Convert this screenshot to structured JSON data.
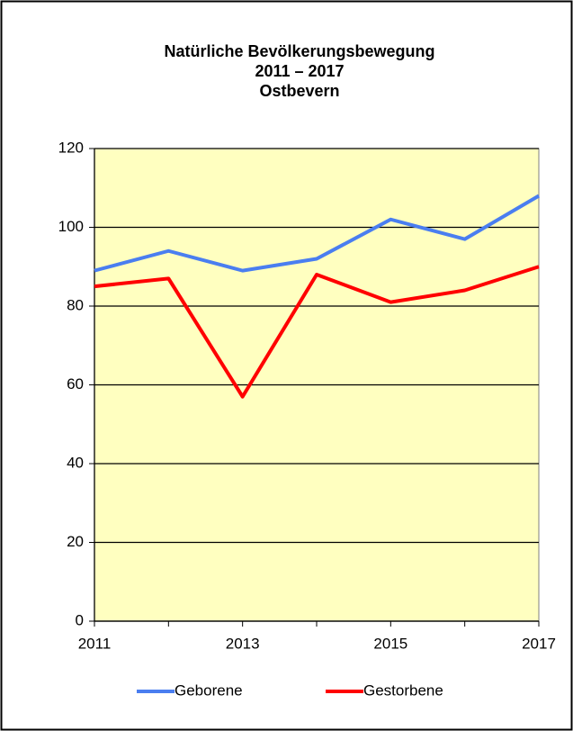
{
  "chart_data": {
    "type": "line",
    "title": [
      "Natürliche Bevölkerungsbewegung",
      "2011 – 2017",
      "Ostbevern"
    ],
    "x": [
      2011,
      2012,
      2013,
      2014,
      2015,
      2016,
      2017
    ],
    "xlim": [
      2011,
      2017
    ],
    "xticks": [
      2011,
      2013,
      2015,
      2017
    ],
    "ylim": [
      0,
      120
    ],
    "yticks": [
      0,
      20,
      40,
      60,
      80,
      100,
      120
    ],
    "grid": true,
    "legend": "bottom",
    "series": [
      {
        "name": "Geborene",
        "color": "#4a7ef0",
        "values": [
          89,
          94,
          89,
          92,
          102,
          97,
          108
        ]
      },
      {
        "name": "Gestorbene",
        "color": "#ff0000",
        "values": [
          85,
          87,
          57,
          88,
          81,
          84,
          90
        ]
      }
    ]
  }
}
